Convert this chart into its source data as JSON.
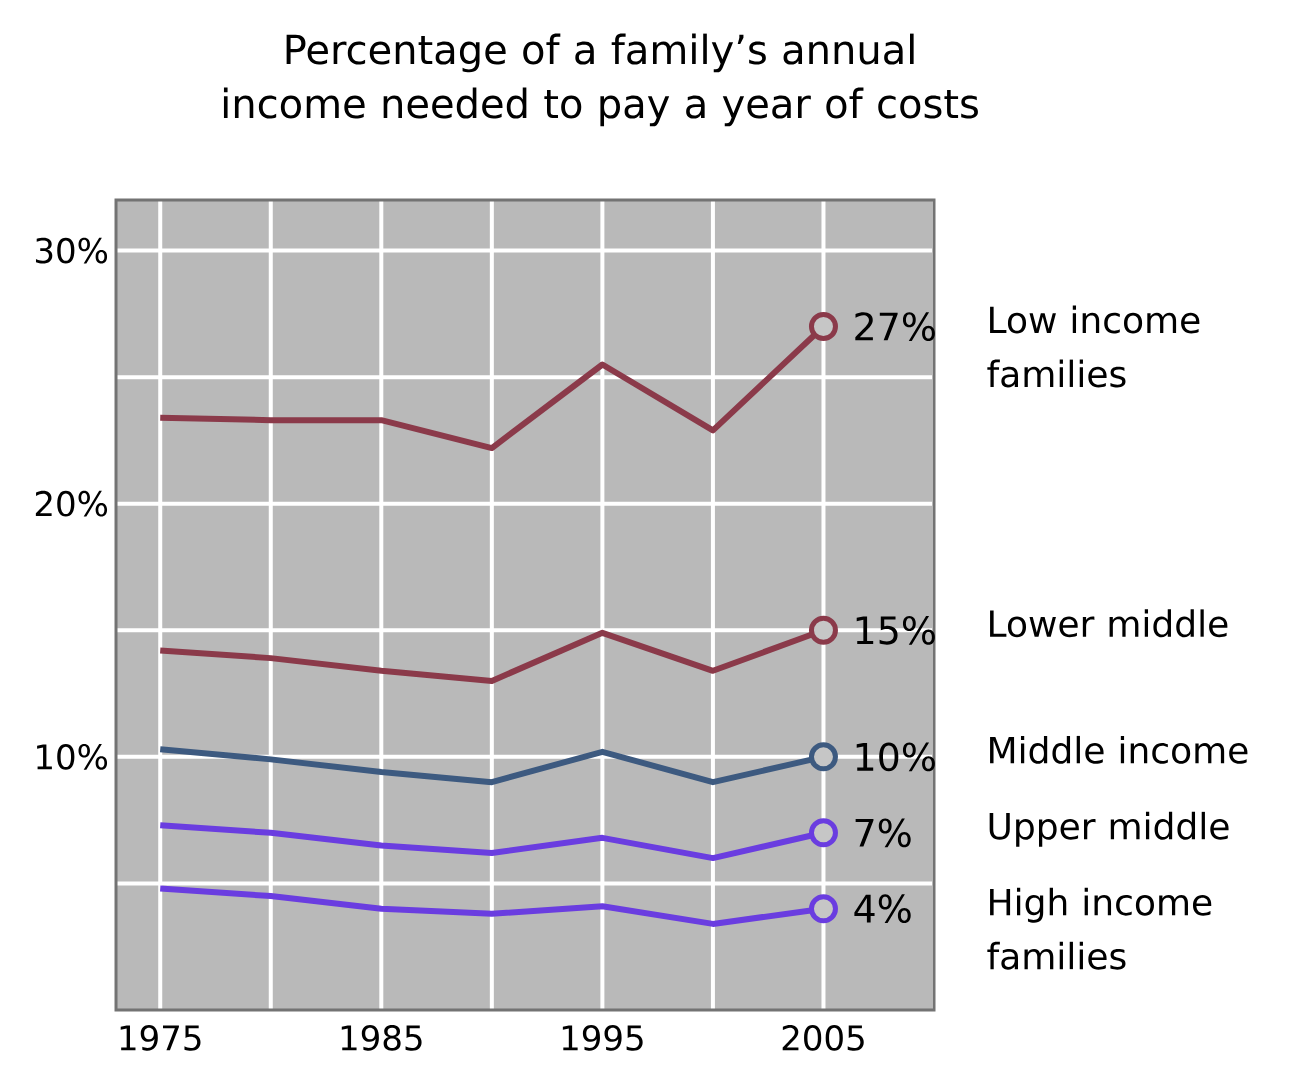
{
  "chart_data": {
    "type": "line",
    "title": "Percentage of a family’s annual income needed to pay a year of costs",
    "x": [
      1975,
      1980,
      1985,
      1990,
      1995,
      2000,
      2005
    ],
    "series": [
      {
        "name": "Low income families",
        "color": "#8b3a4a",
        "values": [
          23.4,
          23.3,
          23.3,
          22.2,
          25.5,
          22.9,
          27
        ],
        "value_labels": [
          null,
          null,
          null,
          null,
          null,
          null,
          "27%"
        ]
      },
      {
        "name": "Lower middle",
        "color": "#8b3a4a",
        "values": [
          14.2,
          13.9,
          13.4,
          13.0,
          14.9,
          13.4,
          15
        ],
        "value_labels": [
          null,
          null,
          null,
          null,
          null,
          null,
          "15%"
        ]
      },
      {
        "name": "Middle income",
        "color": "#3d5a80",
        "values": [
          10.3,
          9.9,
          9.4,
          9.0,
          10.2,
          9.0,
          10
        ],
        "value_labels": [
          null,
          null,
          null,
          null,
          null,
          null,
          "10%"
        ]
      },
      {
        "name": "Upper middle",
        "color": "#6a3de0",
        "values": [
          7.3,
          7.0,
          6.5,
          6.2,
          6.8,
          6.0,
          7
        ],
        "value_labels": [
          null,
          null,
          null,
          null,
          null,
          null,
          "7%"
        ]
      },
      {
        "name": "High income families",
        "color": "#6a3de0",
        "values": [
          4.8,
          4.5,
          4.0,
          3.8,
          4.1,
          3.4,
          4
        ],
        "value_labels": [
          null,
          null,
          null,
          null,
          null,
          null,
          "4%"
        ]
      }
    ],
    "xlim": [
      1973,
      2010
    ],
    "ylim": [
      0,
      32
    ],
    "xticks": [
      1975,
      {
        "value": 1980,
        "label": null
      },
      1985,
      {
        "value": 1990,
        "label": null
      },
      1995,
      {
        "value": 2000,
        "label": null
      },
      2005,
      {
        "value": 2010,
        "label": null
      }
    ],
    "yticks": [
      {
        "value": 5,
        "label": null
      },
      {
        "value": 10,
        "label": "10%"
      },
      {
        "value": 15,
        "label": null
      },
      {
        "value": 20,
        "label": "20%"
      },
      {
        "value": 25,
        "label": null
      },
      {
        "value": 30,
        "label": "30%"
      }
    ],
    "grid": true,
    "line_style": "solid",
    "legend": false
  }
}
